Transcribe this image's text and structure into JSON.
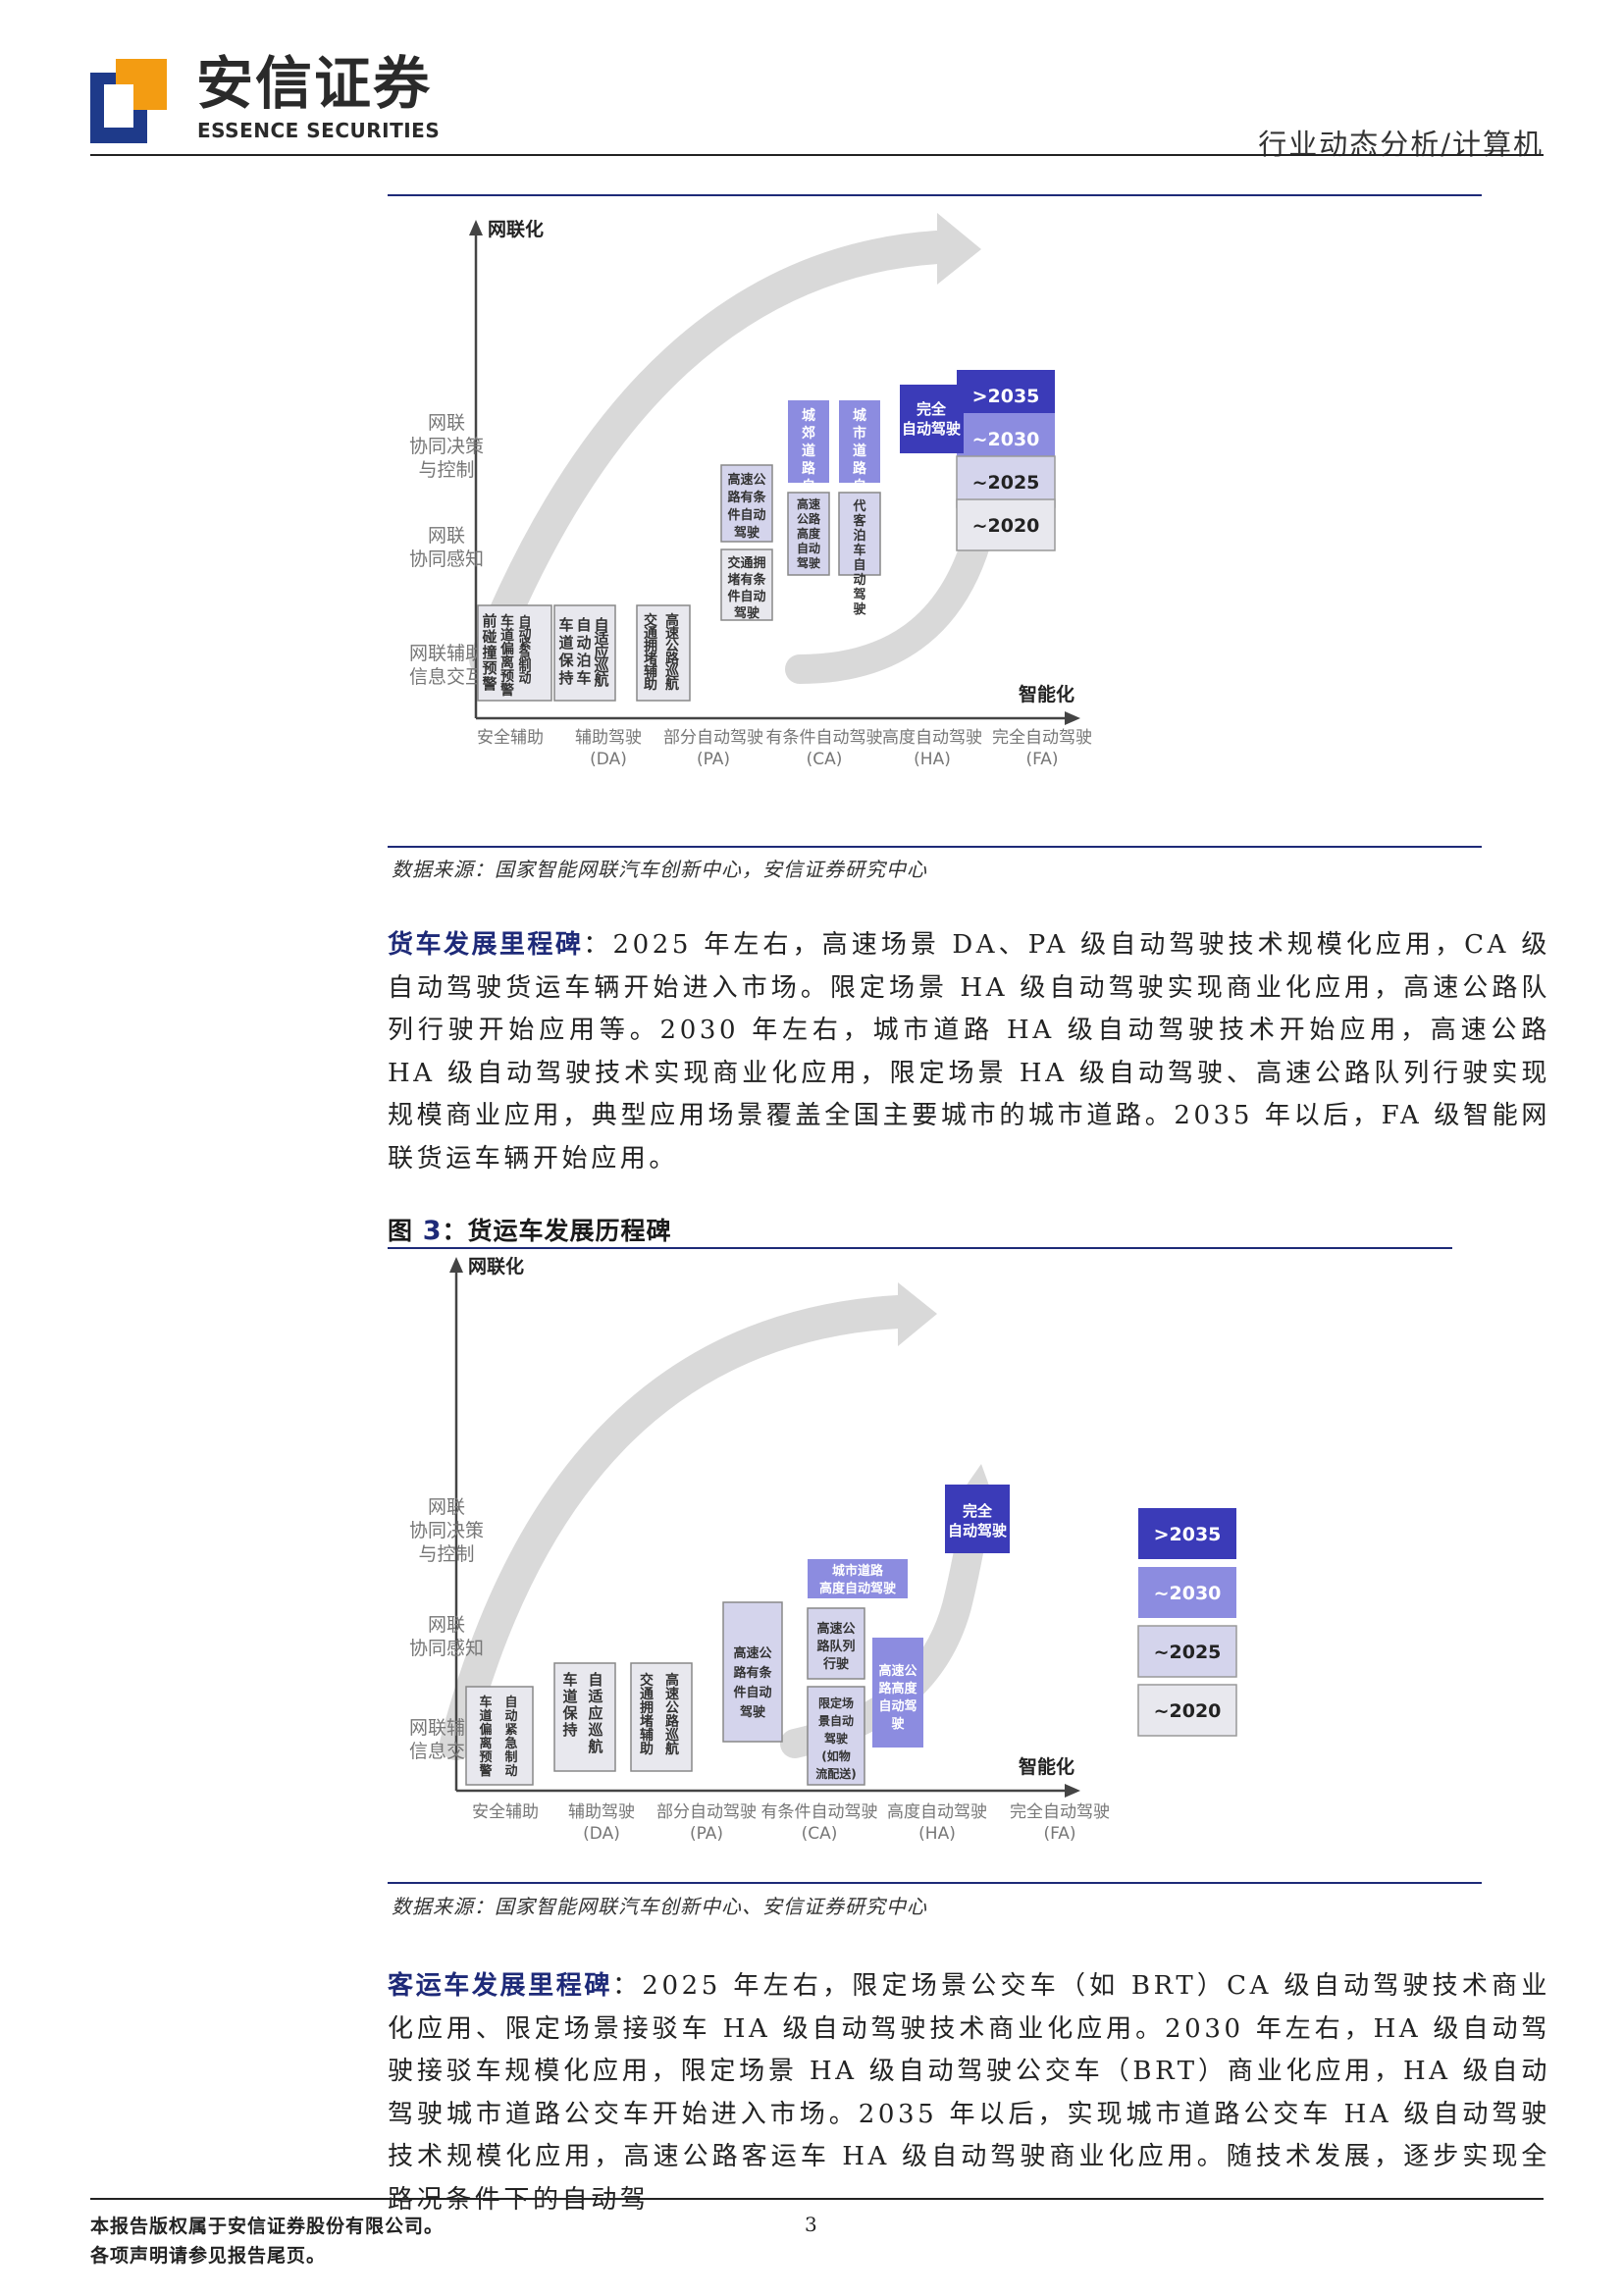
{
  "header": {
    "brand_cn": "安信证券",
    "brand_en": "ESSENCE SECURITIES",
    "category": "行业动态分析/计算机"
  },
  "figure1": {
    "source": "数据来源：国家智能网联汽车创新中心，安信证券研究中心",
    "chart_data": {
      "type": "diagram",
      "y_axis_title": "网联化",
      "x_axis_title": "智能化",
      "y_levels": [
        "网联辅助信息交互",
        "网联协同感知",
        "网联协同决策与控制"
      ],
      "x_levels": [
        "安全辅助",
        "辅助驾驶(DA)",
        "部分自动驾驶(PA)",
        "有条件自动驾驶(CA)",
        "高度自动驾驶(HA)",
        "完全自动驾驶(FA)"
      ],
      "legend": [
        ">2035",
        "~2030",
        "~2025",
        "~2020"
      ],
      "legend_colors": [
        "#3b3bb8",
        "#8c8ce0",
        "#d4d4ec",
        "#e8e8ee"
      ],
      "items": [
        {
          "level": "安全辅助",
          "period": "~2020",
          "label": "前碰撞预警"
        },
        {
          "level": "安全辅助",
          "period": "~2020",
          "label": "车道偏离预警"
        },
        {
          "level": "安全辅助",
          "period": "~2020",
          "label": "自动紧急制动"
        },
        {
          "level": "辅助驾驶(DA)",
          "period": "~2020",
          "label": "车道保持"
        },
        {
          "level": "辅助驾驶(DA)",
          "period": "~2020",
          "label": "自动泊车"
        },
        {
          "level": "辅助驾驶(DA)",
          "period": "~2020",
          "label": "自适应巡航"
        },
        {
          "level": "部分自动驾驶(PA)",
          "period": "~2020",
          "label": "交通拥堵辅助"
        },
        {
          "level": "部分自动驾驶(PA)",
          "period": "~2020",
          "label": "高速公路巡航"
        },
        {
          "level": "有条件自动驾驶(CA)",
          "period": "~2025",
          "label": "高速公路有条件自动驾驶"
        },
        {
          "level": "有条件自动驾驶(CA)",
          "period": "~2020",
          "label": "交通拥堵有条件自动驾驶"
        },
        {
          "level": "高度自动驾驶(HA)",
          "period": "~2030",
          "label": "城郊道路自动驾驶"
        },
        {
          "level": "高度自动驾驶(HA)",
          "period": "~2030",
          "label": "城市道路自动驾驶"
        },
        {
          "level": "高度自动驾驶(HA)",
          "period": "~2025",
          "label": "高速公路高度自动驾驶"
        },
        {
          "level": "高度自动驾驶(HA)",
          "period": "~2025",
          "label": "代客泊车自动驾驶"
        },
        {
          "level": "完全自动驾驶(FA)",
          "period": ">2035",
          "label": "完全自动驾驶"
        }
      ]
    }
  },
  "para1": {
    "lead": "货车发展里程碑",
    "text": "：2025 年左右，高速场景 DA、PA 级自动驾驶技术规模化应用，CA 级自动驾驶货运车辆开始进入市场。限定场景 HA 级自动驾驶实现商业化应用，高速公路队列行驶开始应用等。2030 年左右，城市道路 HA 级自动驾驶技术开始应用，高速公路 HA 级自动驾驶技术实现商业化应用，限定场景 HA 级自动驾驶、高速公路队列行驶实现规模商业应用，典型应用场景覆盖全国主要城市的城市道路。2035 年以后，FA 级智能网联货运车辆开始应用。"
  },
  "figure2": {
    "title_prefix": "图 ",
    "title_num": "3",
    "title_text": "：货运车发展历程碑",
    "source": "数据来源：国家智能网联汽车创新中心、安信证券研究中心",
    "chart_data": {
      "type": "diagram",
      "y_axis_title": "网联化",
      "x_axis_title": "智能化",
      "y_levels": [
        "网联辅助信息交互",
        "网联协同感知",
        "网联协同决策与控制"
      ],
      "x_levels": [
        "安全辅助",
        "辅助驾驶(DA)",
        "部分自动驾驶(PA)",
        "有条件自动驾驶(CA)",
        "高度自动驾驶(HA)",
        "完全自动驾驶(FA)"
      ],
      "legend": [
        ">2035",
        "~2030",
        "~2025",
        "~2020"
      ],
      "legend_colors": [
        "#3b3bb8",
        "#8c8ce0",
        "#d4d4ec",
        "#e8e8ee"
      ],
      "items": [
        {
          "level": "安全辅助",
          "period": "~2020",
          "label": "车道偏离预警"
        },
        {
          "level": "安全辅助",
          "period": "~2020",
          "label": "自动紧急制动"
        },
        {
          "level": "辅助驾驶(DA)",
          "period": "~2020",
          "label": "车道保持"
        },
        {
          "level": "辅助驾驶(DA)",
          "period": "~2020",
          "label": "自适应巡航"
        },
        {
          "level": "部分自动驾驶(PA)",
          "period": "~2020",
          "label": "交通拥堵辅助"
        },
        {
          "level": "部分自动驾驶(PA)",
          "period": "~2020",
          "label": "高速公路巡航"
        },
        {
          "level": "有条件自动驾驶(CA)",
          "period": "~2025",
          "label": "高速公路有条件自动驾驶"
        },
        {
          "level": "高度自动驾驶(HA)",
          "period": "~2030",
          "label": "城市道路高度自动驾驶"
        },
        {
          "level": "高度自动驾驶(HA)",
          "period": "~2025",
          "label": "高速公路队列行驶"
        },
        {
          "level": "高度自动驾驶(HA)",
          "period": "~2025",
          "label": "限定场景自动驾驶(如物流配送)"
        },
        {
          "level": "高度自动驾驶(HA)",
          "period": "~2030",
          "label": "高速公路高度自动驾驶"
        },
        {
          "level": "完全自动驾驶(FA)",
          "period": ">2035",
          "label": "完全自动驾驶"
        }
      ]
    }
  },
  "para2": {
    "lead": "客运车发展里程碑",
    "text": "：2025 年左右，限定场景公交车（如 BRT）CA 级自动驾驶技术商业化应用、限定场景接驳车 HA 级自动驾驶技术商业化应用。2030 年左右，HA 级自动驾驶接驳车规模化应用，限定场景 HA 级自动驾驶公交车（BRT）商业化应用，HA 级自动驾驶城市道路公交车开始进入市场。2035 年以后，实现城市道路公交车 HA 级自动驾驶技术规模化应用，高速公路客运车 HA 级自动驾驶商业化应用。随技术发展，逐步实现全路况条件下的自动驾"
  },
  "footer": {
    "line1": "本报告版权属于安信证券股份有限公司。",
    "line2": "各项声明请参见报告尾页。",
    "page": "3"
  }
}
